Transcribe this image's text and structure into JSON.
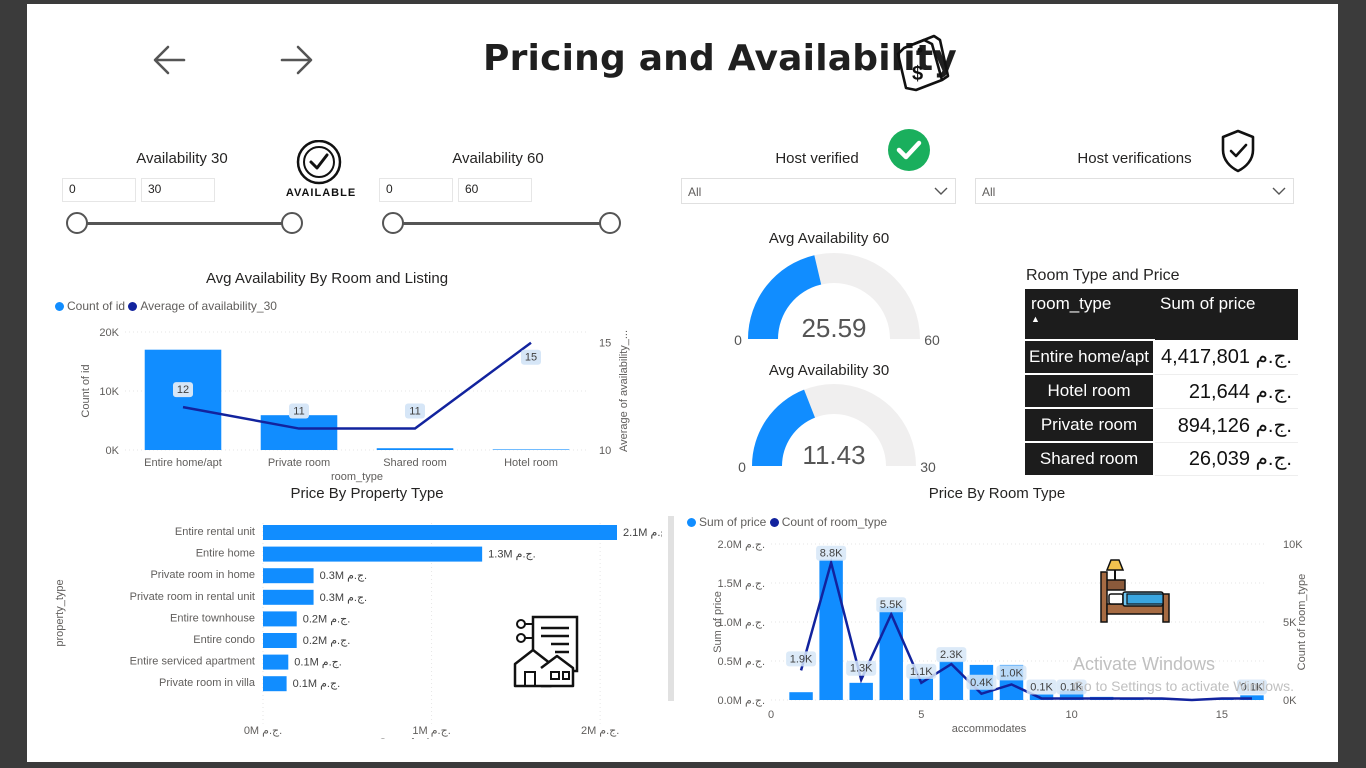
{
  "header": {
    "title": "Pricing and Availability",
    "back_icon": "arrow-left-icon",
    "forward_icon": "arrow-right-icon",
    "title_icon": "price-tag-dollar-icon"
  },
  "slicers": {
    "availability_30": {
      "label": "Availability 30",
      "min": "0",
      "max": "30",
      "range_fraction": [
        0,
        1
      ]
    },
    "available_badge": "AVAILABLE",
    "availability_60": {
      "label": "Availability 60",
      "min": "0",
      "max": "60",
      "range_fraction": [
        0,
        1
      ]
    },
    "host_verified": {
      "label": "Host verified",
      "value": "All",
      "icon": "green-check-icon"
    },
    "host_verifications": {
      "label": "Host verifications",
      "value": "All",
      "icon": "shield-check-icon"
    }
  },
  "gauges": {
    "avg_60": {
      "title": "Avg Availability 60",
      "value": 25.59,
      "value_text": "25.59",
      "min_text": "0",
      "max_text": "60",
      "min": 0,
      "max": 60
    },
    "avg_30": {
      "title": "Avg Availability 30",
      "value": 11.43,
      "value_text": "11.43",
      "min_text": "0",
      "max_text": "30",
      "min": 0,
      "max": 30
    }
  },
  "room_table": {
    "title": "Room Type and Price",
    "headers": [
      "room_type",
      "Sum of price"
    ],
    "rows": [
      [
        "Entire home/apt",
        "4,417,801 ج.م."
      ],
      [
        "Hotel room",
        "21,644 ج.م."
      ],
      [
        "Private room",
        "894,126 ج.م."
      ],
      [
        "Shared room",
        "26,039 ج.م."
      ]
    ]
  },
  "colors": {
    "accent": "#118dff",
    "dark_series": "#12239e",
    "gauge_bg": "#f0efef",
    "table_bg": "#1c1c1c",
    "check_green": "#1aaf5d"
  },
  "watermark": {
    "line1": "Activate Windows",
    "line2": "Go to Settings to activate Windows."
  },
  "chart_data": [
    {
      "type": "bar",
      "title": "Avg Availability By Room and Listing",
      "legend": [
        "Count of id",
        "Average of availability_30"
      ],
      "legend_position": "top-left",
      "categories": [
        "Entire home/apt",
        "Private room",
        "Shared room",
        "Hotel room"
      ],
      "series": [
        {
          "name": "Count of id",
          "type": "bar",
          "axis": "left",
          "values": [
            17000,
            5900,
            300,
            100
          ]
        },
        {
          "name": "Average of availability_30",
          "type": "line",
          "axis": "right",
          "values": [
            12,
            11,
            11,
            15
          ],
          "labels": [
            "12",
            "11",
            "11",
            "15"
          ]
        }
      ],
      "xlabel": "room_type",
      "ylabel": "Count of id",
      "y2label": "Average of availability_...",
      "yticks": [
        "0K",
        "10K",
        "20K"
      ],
      "ylim": [
        0,
        20000
      ],
      "y2ticks": [
        "10",
        "15"
      ],
      "y2lim": [
        10,
        15.5
      ]
    },
    {
      "type": "bar",
      "orientation": "horizontal",
      "title": "Price By Property Type",
      "categories": [
        "Entire rental unit",
        "Entire home",
        "Private room in home",
        "Private room in rental unit",
        "Entire townhouse",
        "Entire condo",
        "Entire serviced apartment",
        "Private room in villa"
      ],
      "values": [
        2100000,
        1300000,
        300000,
        300000,
        200000,
        200000,
        150000,
        140000
      ],
      "labels": [
        "2.1M ج.م.",
        "1.3M ج.م.",
        "0.3M ج.م.",
        "0.3M ج.م.",
        "0.2M ج.م.",
        "0.2M ج.م.",
        "0.1M ج.م.",
        "0.1M ج.م."
      ],
      "xlabel": "Sum of price",
      "ylabel": "property_type",
      "xticks": [
        "0M ج.م.",
        "1M ج.م.",
        "2M ج.م."
      ],
      "xlim": [
        0,
        2100000
      ]
    },
    {
      "type": "bar",
      "title": "Price By Room Type",
      "legend": [
        "Sum of price",
        "Count of room_type"
      ],
      "legend_position": "top-left",
      "x": [
        1,
        2,
        3,
        4,
        5,
        6,
        7,
        8,
        9,
        10,
        11,
        12,
        13,
        14,
        15,
        16
      ],
      "series": [
        {
          "name": "Sum of price",
          "type": "bar",
          "axis": "left",
          "values": [
            100000,
            1800000,
            220000,
            1200000,
            300000,
            500000,
            450000,
            450000,
            70000,
            120000,
            40000,
            30000,
            20000,
            10000,
            10000,
            60000
          ]
        },
        {
          "name": "Count of room_type",
          "type": "line",
          "axis": "right",
          "values": [
            1900,
            8800,
            1300,
            5500,
            1100,
            2300,
            400,
            1000,
            100,
            100,
            100,
            100,
            100,
            0,
            100,
            100
          ],
          "labels": [
            "1.9K",
            "8.8K",
            "1.3K",
            "5.5K",
            "1.1K",
            "2.3K",
            "0.4K",
            "1.0K",
            "0.1K",
            "0.1K",
            "",
            "",
            "",
            "",
            "",
            "0.1K"
          ]
        }
      ],
      "xlabel": "accommodates",
      "ylabel": "Sum of price",
      "y2label": "Count of room_type",
      "xticks": [
        "0",
        "5",
        "10",
        "15"
      ],
      "xlim": [
        0,
        16.5
      ],
      "yticks": [
        "0.0M ج.م.",
        "0.5M ج.م.",
        "1.0M ج.م.",
        "1.5M ج.م.",
        "2.0M ج.م."
      ],
      "ylim": [
        0,
        2000000
      ],
      "y2ticks": [
        "0K",
        "5K",
        "10K"
      ],
      "y2lim": [
        0,
        10000
      ]
    }
  ]
}
